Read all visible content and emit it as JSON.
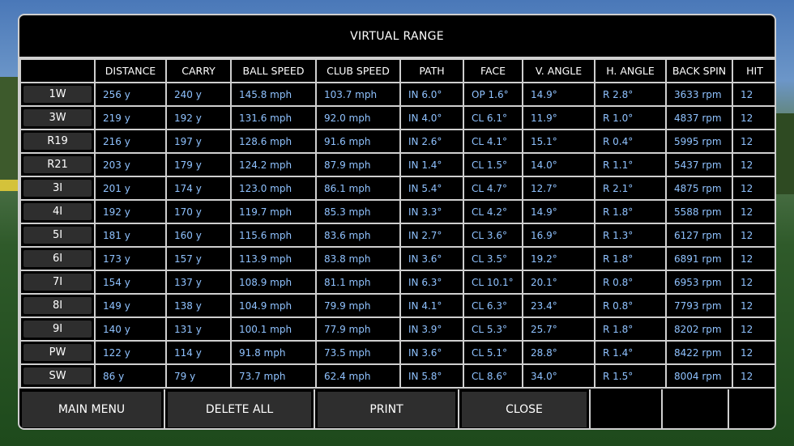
{
  "title": "VIRTUAL RANGE",
  "columns": [
    "DISTANCE",
    "CARRY",
    "BALL SPEED",
    "CLUB SPEED",
    "PATH",
    "FACE",
    "V. ANGLE",
    "H. ANGLE",
    "BACK SPIN",
    "HIT"
  ],
  "rows": [
    {
      "club": "1W",
      "values": [
        "256 y",
        "240 y",
        "145.8 mph",
        "103.7 mph",
        "IN 6.0°",
        "OP 1.6°",
        "14.9°",
        "R 2.8°",
        "3633 rpm",
        "12"
      ]
    },
    {
      "club": "3W",
      "values": [
        "219 y",
        "192 y",
        "131.6 mph",
        "92.0 mph",
        "IN 4.0°",
        "CL 6.1°",
        "11.9°",
        "R 1.0°",
        "4837 rpm",
        "12"
      ]
    },
    {
      "club": "R19",
      "values": [
        "216 y",
        "197 y",
        "128.6 mph",
        "91.6 mph",
        "IN 2.6°",
        "CL 4.1°",
        "15.1°",
        "R 0.4°",
        "5995 rpm",
        "12"
      ]
    },
    {
      "club": "R21",
      "values": [
        "203 y",
        "179 y",
        "124.2 mph",
        "87.9 mph",
        "IN 1.4°",
        "CL 1.5°",
        "14.0°",
        "R 1.1°",
        "5437 rpm",
        "12"
      ]
    },
    {
      "club": "3I",
      "values": [
        "201 y",
        "174 y",
        "123.0 mph",
        "86.1 mph",
        "IN 5.4°",
        "CL 4.7°",
        "12.7°",
        "R 2.1°",
        "4875 rpm",
        "12"
      ]
    },
    {
      "club": "4I",
      "values": [
        "192 y",
        "170 y",
        "119.7 mph",
        "85.3 mph",
        "IN 3.3°",
        "CL 4.2°",
        "14.9°",
        "R 1.8°",
        "5588 rpm",
        "12"
      ]
    },
    {
      "club": "5I",
      "values": [
        "181 y",
        "160 y",
        "115.6 mph",
        "83.6 mph",
        "IN 2.7°",
        "CL 3.6°",
        "16.9°",
        "R 1.3°",
        "6127 rpm",
        "12"
      ]
    },
    {
      "club": "6I",
      "values": [
        "173 y",
        "157 y",
        "113.9 mph",
        "83.8 mph",
        "IN 3.6°",
        "CL 3.5°",
        "19.2°",
        "R 1.8°",
        "6891 rpm",
        "12"
      ]
    },
    {
      "club": "7I",
      "values": [
        "154 y",
        "137 y",
        "108.9 mph",
        "81.1 mph",
        "IN 6.3°",
        "CL 10.1°",
        "20.1°",
        "R 0.8°",
        "6953 rpm",
        "12"
      ]
    },
    {
      "club": "8I",
      "values": [
        "149 y",
        "138 y",
        "104.9 mph",
        "79.9 mph",
        "IN 4.1°",
        "CL 6.3°",
        "23.4°",
        "R 0.8°",
        "7793 rpm",
        "12"
      ]
    },
    {
      "club": "9I",
      "values": [
        "140 y",
        "131 y",
        "100.1 mph",
        "77.9 mph",
        "IN 3.9°",
        "CL 5.3°",
        "25.7°",
        "R 1.8°",
        "8202 rpm",
        "12"
      ]
    },
    {
      "club": "PW",
      "values": [
        "122 y",
        "114 y",
        "91.8 mph",
        "73.5 mph",
        "IN 3.6°",
        "CL 5.1°",
        "28.8°",
        "R 1.4°",
        "8422 rpm",
        "12"
      ]
    },
    {
      "club": "SW",
      "values": [
        "86 y",
        "79 y",
        "73.7 mph",
        "62.4 mph",
        "IN 5.8°",
        "CL 8.6°",
        "34.0°",
        "R 1.5°",
        "8004 rpm",
        "12"
      ]
    }
  ],
  "buttons": {
    "main_menu": "MAIN MENU",
    "delete_all": "DELETE ALL",
    "print": "PRINT",
    "close": "CLOSE"
  },
  "colors": {
    "value_text": "#8fc2ff",
    "border": "#cfcfcf",
    "button_bg": "#2e2e2e"
  }
}
